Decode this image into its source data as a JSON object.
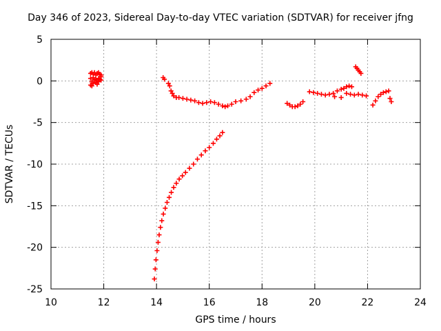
{
  "chart_data": {
    "type": "scatter",
    "title": "Day 346 of 2023, Sidereal Day-to-day VTEC variation (SDTVAR) for receiver jfng",
    "xlabel": "GPS time / hours",
    "ylabel": "SDTVAR / TECUs",
    "xlim": [
      10,
      24
    ],
    "ylim": [
      -25,
      5
    ],
    "xticks": [
      10,
      12,
      14,
      16,
      18,
      20,
      22,
      24
    ],
    "yticks": [
      -25,
      -20,
      -15,
      -10,
      -5,
      0,
      5
    ],
    "grid": true,
    "marker": "+",
    "series": [
      {
        "name": "SDTVAR",
        "color": "#ff0000",
        "segments": [
          {
            "x": [
              11.5,
              11.55,
              11.6,
              11.65,
              11.7,
              11.75,
              11.8,
              11.85,
              11.9,
              11.5,
              11.6,
              11.7,
              11.8,
              11.9,
              11.55,
              11.65,
              11.75,
              11.85,
              11.5,
              11.6,
              11.7,
              11.8,
              11.9,
              11.55,
              11.75
            ],
            "y": [
              0.9,
              1.0,
              0.8,
              1.0,
              0.7,
              0.9,
              1.0,
              0.8,
              0.7,
              0.3,
              0.4,
              0.2,
              0.3,
              0.5,
              -0.1,
              0.1,
              0.0,
              0.2,
              -0.5,
              -0.3,
              -0.2,
              -0.1,
              0.1,
              -0.6,
              -0.4
            ]
          },
          {
            "x": [
              14.25,
              14.3,
              14.45,
              14.5,
              14.55,
              14.6,
              14.65,
              14.75,
              14.85,
              15.0,
              15.15,
              15.3,
              15.45,
              15.6,
              15.75,
              15.9,
              16.05,
              16.2,
              16.35,
              16.5,
              16.6,
              16.7,
              16.85,
              17.0,
              17.2,
              17.4,
              17.55,
              17.7,
              17.85,
              18.0,
              18.15,
              18.3
            ],
            "y": [
              0.4,
              0.2,
              -0.3,
              -0.6,
              -1.2,
              -1.5,
              -1.8,
              -2.0,
              -2.0,
              -2.1,
              -2.2,
              -2.3,
              -2.4,
              -2.6,
              -2.7,
              -2.6,
              -2.5,
              -2.6,
              -2.8,
              -3.0,
              -3.1,
              -3.0,
              -2.8,
              -2.5,
              -2.4,
              -2.2,
              -1.9,
              -1.4,
              -1.1,
              -0.9,
              -0.6,
              -0.3
            ]
          },
          {
            "x": [
              13.92,
              13.95,
              13.98,
              14.02,
              14.06,
              14.1,
              14.15,
              14.2,
              14.26,
              14.33,
              14.4,
              14.48,
              14.56,
              14.65,
              14.75,
              14.86,
              14.98,
              15.1,
              15.25,
              15.4,
              15.55,
              15.7,
              15.85,
              16.0,
              16.15,
              16.28,
              16.4,
              16.5
            ],
            "y": [
              -23.8,
              -22.6,
              -21.5,
              -20.4,
              -19.4,
              -18.5,
              -17.6,
              -16.8,
              -16.0,
              -15.3,
              -14.6,
              -14.0,
              -13.4,
              -12.8,
              -12.3,
              -11.8,
              -11.4,
              -11.0,
              -10.5,
              -10.0,
              -9.4,
              -8.9,
              -8.4,
              -8.0,
              -7.5,
              -7.0,
              -6.6,
              -6.2
            ]
          },
          {
            "x": [
              18.95,
              19.05,
              19.15,
              19.25,
              19.35,
              19.45,
              19.55
            ],
            "y": [
              -2.7,
              -2.9,
              -3.1,
              -3.1,
              -3.0,
              -2.8,
              -2.5
            ]
          },
          {
            "x": [
              19.8,
              19.95,
              20.1,
              20.25,
              20.4,
              20.55,
              20.7,
              20.85,
              21.0,
              21.1,
              21.2,
              21.3,
              21.4
            ],
            "y": [
              -1.3,
              -1.4,
              -1.5,
              -1.6,
              -1.7,
              -1.6,
              -1.5,
              -1.2,
              -1.0,
              -0.9,
              -0.7,
              -0.6,
              -0.7
            ]
          },
          {
            "x": [
              20.75,
              21.0,
              21.2,
              21.35,
              21.5,
              21.65,
              21.8,
              21.95
            ],
            "y": [
              -1.9,
              -2.0,
              -1.5,
              -1.6,
              -1.7,
              -1.6,
              -1.7,
              -1.8
            ]
          },
          {
            "x": [
              21.55,
              21.6,
              21.65,
              21.7,
              21.75
            ],
            "y": [
              1.7,
              1.5,
              1.3,
              1.1,
              0.9
            ]
          },
          {
            "x": [
              22.2,
              22.3,
              22.4,
              22.5,
              22.6,
              22.7,
              22.8,
              22.85,
              22.9
            ],
            "y": [
              -2.9,
              -2.4,
              -1.9,
              -1.6,
              -1.4,
              -1.3,
              -1.2,
              -2.1,
              -2.5
            ]
          }
        ]
      }
    ]
  }
}
